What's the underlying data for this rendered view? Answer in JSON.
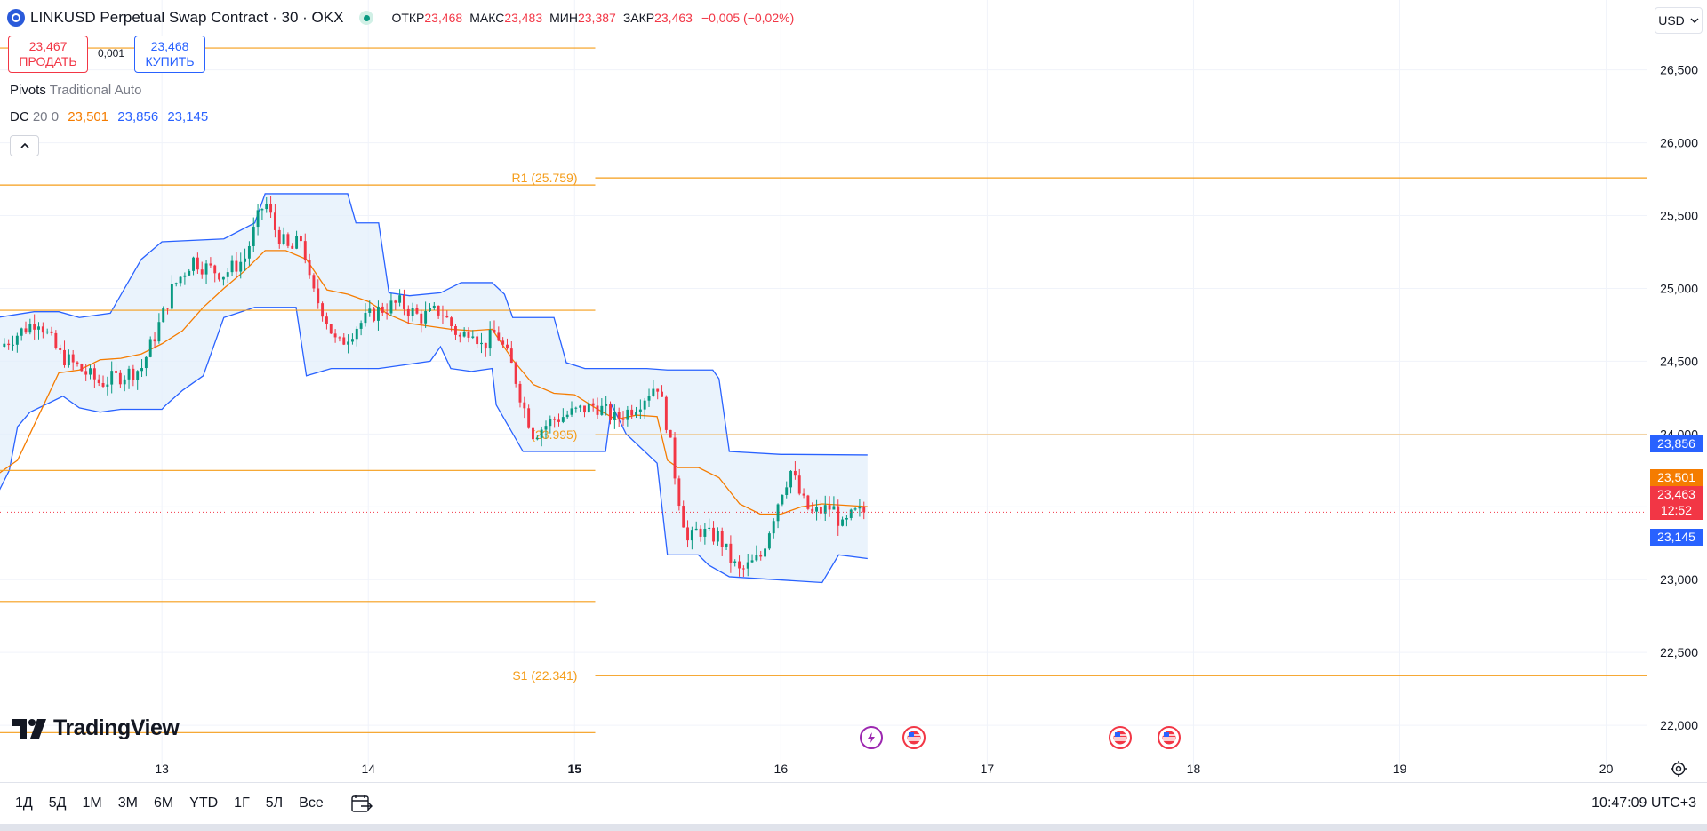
{
  "header": {
    "symbol_title": "LINKUSD Perpetual Swap Contract · 30 · OKX",
    "open_label": "ОТКР",
    "open": "23,468",
    "high_label": "МАКС",
    "high": "23,483",
    "low_label": "МИН",
    "low": "23,387",
    "close_label": "ЗАКР",
    "close": "23,463",
    "change": "−0,005 (−0,02%)"
  },
  "trade": {
    "sell_price": "23,467",
    "sell_label": "ПРОДАТЬ",
    "spread": "0,001",
    "buy_price": "23,468",
    "buy_label": "КУПИТЬ"
  },
  "indicators": {
    "pivots_name": "Pivots",
    "pivots_args": "Traditional Auto",
    "dc_name": "DC",
    "dc_args": "20 0",
    "dc_basis": "23,501",
    "dc_upper": "23,856",
    "dc_lower": "23,145"
  },
  "currency": "USD",
  "price_tags": {
    "upper": "23,856",
    "basis": "23,501",
    "last": "23,463",
    "countdown": "12:52",
    "lower": "23,145"
  },
  "brand": "TradingView",
  "bottom_bar": {
    "ranges": [
      "1Д",
      "5Д",
      "1М",
      "3М",
      "6М",
      "YTD",
      "1Г",
      "5Л",
      "Все"
    ],
    "clock": "10:47:09 UTC+3"
  },
  "colors": {
    "up": "#089981",
    "down": "#f23645",
    "dc_band": "#2962ff",
    "dc_fill": "#e3effb",
    "basis": "#f57c00",
    "pivot": "#f59d1a",
    "accent": "#2962ff"
  },
  "icons": {
    "collapse": "chevron-up-icon",
    "settings": "gear-icon",
    "goto_date": "calendar-icon"
  },
  "chart_data": {
    "type": "candlestick",
    "timeframe": "30",
    "y_ticks": [
      "26,500",
      "26,000",
      "25,500",
      "25,000",
      "24,500",
      "24,000",
      "23,500",
      "23,000",
      "22,500",
      "22,000"
    ],
    "y_range": [
      21.72,
      26.98
    ],
    "x_ticks": [
      {
        "day": 13,
        "label": "13"
      },
      {
        "day": 14,
        "label": "14"
      },
      {
        "day": 15,
        "label": "15",
        "bold": true
      },
      {
        "day": 16,
        "label": "16"
      },
      {
        "day": 17,
        "label": "17"
      },
      {
        "day": 18,
        "label": "18"
      },
      {
        "day": 19,
        "label": "19"
      },
      {
        "day": 20,
        "label": "20"
      }
    ],
    "x_range_days": [
      12.215,
      20.2
    ],
    "last_price": 23.463,
    "donchian": {
      "length": 20,
      "offset": 0,
      "upper": [
        [
          12.2,
          24.8
        ],
        [
          12.38,
          24.84
        ],
        [
          12.5,
          24.84
        ],
        [
          12.6,
          24.8
        ],
        [
          12.75,
          24.83
        ],
        [
          12.9,
          25.2
        ],
        [
          13.0,
          25.32
        ],
        [
          13.3,
          25.34
        ],
        [
          13.45,
          25.45
        ],
        [
          13.5,
          25.65
        ],
        [
          13.9,
          25.65
        ],
        [
          13.94,
          25.45
        ],
        [
          14.05,
          25.45
        ],
        [
          14.1,
          24.97
        ],
        [
          14.2,
          24.95
        ],
        [
          14.35,
          24.97
        ],
        [
          14.45,
          25.04
        ],
        [
          14.6,
          25.04
        ],
        [
          14.66,
          24.96
        ],
        [
          14.7,
          24.8
        ],
        [
          14.9,
          24.8
        ],
        [
          14.96,
          24.49
        ],
        [
          15.05,
          24.45
        ],
        [
          15.35,
          24.45
        ],
        [
          15.45,
          24.44
        ],
        [
          15.67,
          24.44
        ],
        [
          15.7,
          24.38
        ],
        [
          15.75,
          23.88
        ],
        [
          16.0,
          23.86
        ],
        [
          16.05,
          23.86
        ],
        [
          16.42,
          23.856
        ]
      ],
      "lower": [
        [
          12.2,
          23.58
        ],
        [
          12.26,
          23.75
        ],
        [
          12.3,
          24.05
        ],
        [
          12.36,
          24.15
        ],
        [
          12.52,
          24.26
        ],
        [
          12.6,
          24.18
        ],
        [
          12.7,
          24.15
        ],
        [
          12.8,
          24.17
        ],
        [
          13.0,
          24.17
        ],
        [
          13.02,
          24.2
        ],
        [
          13.1,
          24.3
        ],
        [
          13.2,
          24.4
        ],
        [
          13.3,
          24.8
        ],
        [
          13.45,
          24.87
        ],
        [
          13.65,
          24.87
        ],
        [
          13.7,
          24.4
        ],
        [
          13.82,
          24.45
        ],
        [
          14.05,
          24.45
        ],
        [
          14.15,
          24.47
        ],
        [
          14.3,
          24.5
        ],
        [
          14.35,
          24.6
        ],
        [
          14.4,
          24.45
        ],
        [
          14.5,
          24.43
        ],
        [
          14.6,
          24.45
        ],
        [
          14.62,
          24.2
        ],
        [
          14.75,
          23.88
        ],
        [
          15.15,
          23.88
        ],
        [
          15.18,
          24.2
        ],
        [
          15.25,
          24.0
        ],
        [
          15.4,
          23.8
        ],
        [
          15.45,
          23.17
        ],
        [
          15.6,
          23.17
        ],
        [
          15.65,
          23.1
        ],
        [
          15.75,
          23.02
        ],
        [
          16.2,
          22.98
        ],
        [
          16.28,
          23.17
        ],
        [
          16.42,
          23.145
        ]
      ],
      "basis": [
        [
          12.2,
          23.72
        ],
        [
          12.3,
          23.82
        ],
        [
          12.4,
          24.12
        ],
        [
          12.5,
          24.42
        ],
        [
          12.6,
          24.44
        ],
        [
          12.7,
          24.51
        ],
        [
          12.8,
          24.52
        ],
        [
          12.9,
          24.55
        ],
        [
          13.0,
          24.62
        ],
        [
          13.1,
          24.71
        ],
        [
          13.2,
          24.87
        ],
        [
          13.3,
          25.0
        ],
        [
          13.4,
          25.12
        ],
        [
          13.5,
          25.26
        ],
        [
          13.6,
          25.26
        ],
        [
          13.7,
          25.2
        ],
        [
          13.8,
          24.99
        ],
        [
          13.9,
          24.96
        ],
        [
          14.0,
          24.91
        ],
        [
          14.1,
          24.82
        ],
        [
          14.2,
          24.76
        ],
        [
          14.3,
          24.74
        ],
        [
          14.4,
          24.72
        ],
        [
          14.5,
          24.71
        ],
        [
          14.6,
          24.72
        ],
        [
          14.7,
          24.51
        ],
        [
          14.8,
          24.34
        ],
        [
          14.9,
          24.28
        ],
        [
          15.0,
          24.27
        ],
        [
          15.1,
          24.18
        ],
        [
          15.2,
          24.1
        ],
        [
          15.3,
          24.13
        ],
        [
          15.4,
          24.12
        ],
        [
          15.45,
          23.82
        ],
        [
          15.5,
          23.77
        ],
        [
          15.6,
          23.77
        ],
        [
          15.7,
          23.7
        ],
        [
          15.8,
          23.52
        ],
        [
          15.9,
          23.45
        ],
        [
          16.0,
          23.45
        ],
        [
          16.1,
          23.5
        ],
        [
          16.2,
          23.52
        ],
        [
          16.42,
          23.501
        ]
      ]
    },
    "pivots": [
      {
        "label": "R1 (25.759)",
        "from": 15.1,
        "to": 20.2,
        "value": 25.759,
        "show_label": true
      },
      {
        "label": "(23.995)",
        "from": 15.1,
        "to": 20.2,
        "value": 23.995,
        "show_label": true
      },
      {
        "label": "S1 (22.341)",
        "from": 15.1,
        "to": 20.2,
        "value": 22.341,
        "show_label": true
      },
      {
        "from": 12.215,
        "to": 15.1,
        "value": 26.65,
        "show_label": false
      },
      {
        "from": 12.215,
        "to": 15.1,
        "value": 25.71,
        "show_label": false
      },
      {
        "from": 12.215,
        "to": 15.1,
        "value": 24.85,
        "show_label": false
      },
      {
        "from": 12.215,
        "to": 15.1,
        "value": 23.75,
        "show_label": false
      },
      {
        "from": 12.215,
        "to": 15.1,
        "value": 22.85,
        "show_label": false
      },
      {
        "from": 12.215,
        "to": 15.1,
        "value": 21.95,
        "show_label": false
      }
    ],
    "candle_path": [
      [
        12.215,
        24.6
      ],
      [
        12.4,
        24.79
      ],
      [
        12.5,
        24.55
      ],
      [
        12.6,
        24.45
      ],
      [
        12.7,
        24.35
      ],
      [
        12.8,
        24.4
      ],
      [
        12.9,
        24.45
      ],
      [
        13.0,
        24.8
      ],
      [
        13.05,
        25.0
      ],
      [
        13.15,
        25.2
      ],
      [
        13.2,
        25.15
      ],
      [
        13.3,
        25.1
      ],
      [
        13.4,
        25.2
      ],
      [
        13.47,
        25.5
      ],
      [
        13.5,
        25.6
      ],
      [
        13.55,
        25.4
      ],
      [
        13.62,
        25.25
      ],
      [
        13.68,
        25.35
      ],
      [
        13.72,
        25.0
      ],
      [
        13.78,
        24.85
      ],
      [
        13.85,
        24.6
      ],
      [
        13.95,
        24.75
      ],
      [
        14.05,
        24.85
      ],
      [
        14.15,
        24.9
      ],
      [
        14.25,
        24.8
      ],
      [
        14.35,
        24.85
      ],
      [
        14.45,
        24.65
      ],
      [
        14.5,
        24.75
      ],
      [
        14.55,
        24.6
      ],
      [
        14.62,
        24.7
      ],
      [
        14.7,
        24.45
      ],
      [
        14.75,
        24.2
      ],
      [
        14.8,
        24.0
      ],
      [
        14.9,
        24.1
      ],
      [
        15.0,
        24.15
      ],
      [
        15.1,
        24.2
      ],
      [
        15.2,
        24.1
      ],
      [
        15.3,
        24.2
      ],
      [
        15.4,
        24.35
      ],
      [
        15.45,
        24.05
      ],
      [
        15.5,
        23.6
      ],
      [
        15.55,
        23.25
      ],
      [
        15.6,
        23.35
      ],
      [
        15.65,
        23.3
      ],
      [
        15.7,
        23.3
      ],
      [
        15.75,
        23.15
      ],
      [
        15.8,
        23.05
      ],
      [
        15.9,
        23.15
      ],
      [
        16.0,
        23.6
      ],
      [
        16.05,
        23.75
      ],
      [
        16.1,
        23.55
      ],
      [
        16.15,
        23.45
      ],
      [
        16.25,
        23.5
      ],
      [
        16.3,
        23.35
      ],
      [
        16.35,
        23.45
      ],
      [
        16.42,
        23.463
      ]
    ],
    "events": [
      {
        "day": 16.43,
        "kind": "earnings"
      },
      {
        "day": 16.65,
        "kind": "us-news"
      },
      {
        "day": 17.65,
        "kind": "us-news"
      },
      {
        "day": 17.88,
        "kind": "us-news"
      }
    ]
  }
}
